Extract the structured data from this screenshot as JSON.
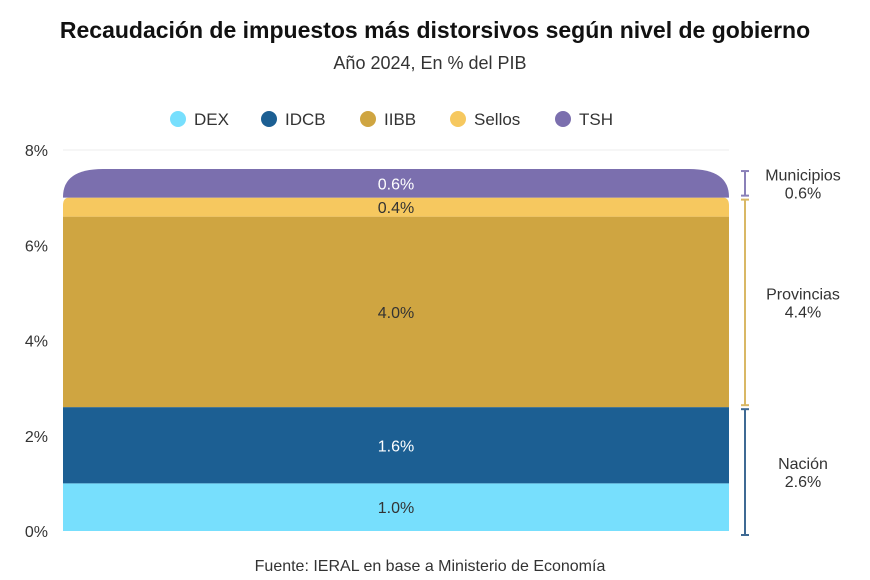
{
  "chart_data": {
    "type": "bar",
    "stacked": true,
    "title": "Recaudación de impuestos más distorsivos según nivel de gobierno",
    "subtitle": "Año 2024, En % del PIB",
    "source": "Fuente: IERAL en base a Ministerio de Economía",
    "ylim": [
      0,
      8
    ],
    "yticks": [
      "0%",
      "2%",
      "4%",
      "6%",
      "8%"
    ],
    "ytick_values": [
      0,
      2,
      4,
      6,
      8
    ],
    "legend_placement": "top",
    "series": [
      {
        "name": "DEX",
        "value": 1.0,
        "label": "1.0%",
        "color": "#77DFFD",
        "label_color": "#333333"
      },
      {
        "name": "IDCB",
        "value": 1.6,
        "label": "1.6%",
        "color": "#1C5F93",
        "label_color": "#ffffff"
      },
      {
        "name": "IIBB",
        "value": 4.0,
        "label": "4.0%",
        "color": "#CFA541",
        "label_color": "#333333"
      },
      {
        "name": "Sellos",
        "value": 0.4,
        "label": "0.4%",
        "color": "#F6C85F",
        "label_color": "#333333"
      },
      {
        "name": "TSH",
        "value": 0.6,
        "label": "0.6%",
        "color": "#7B6FAE",
        "label_color": "#ffffff"
      }
    ],
    "groups": [
      {
        "name": "Nación",
        "value_label": "2.6%",
        "from": 0,
        "to": 2.6,
        "color": "#3F6A94"
      },
      {
        "name": "Provincias",
        "value_label": "4.4%",
        "from": 2.6,
        "to": 7.0,
        "color": "#D9B865"
      },
      {
        "name": "Municipios",
        "value_label": "0.6%",
        "from": 7.0,
        "to": 7.6,
        "color": "#8A80B8"
      }
    ]
  }
}
